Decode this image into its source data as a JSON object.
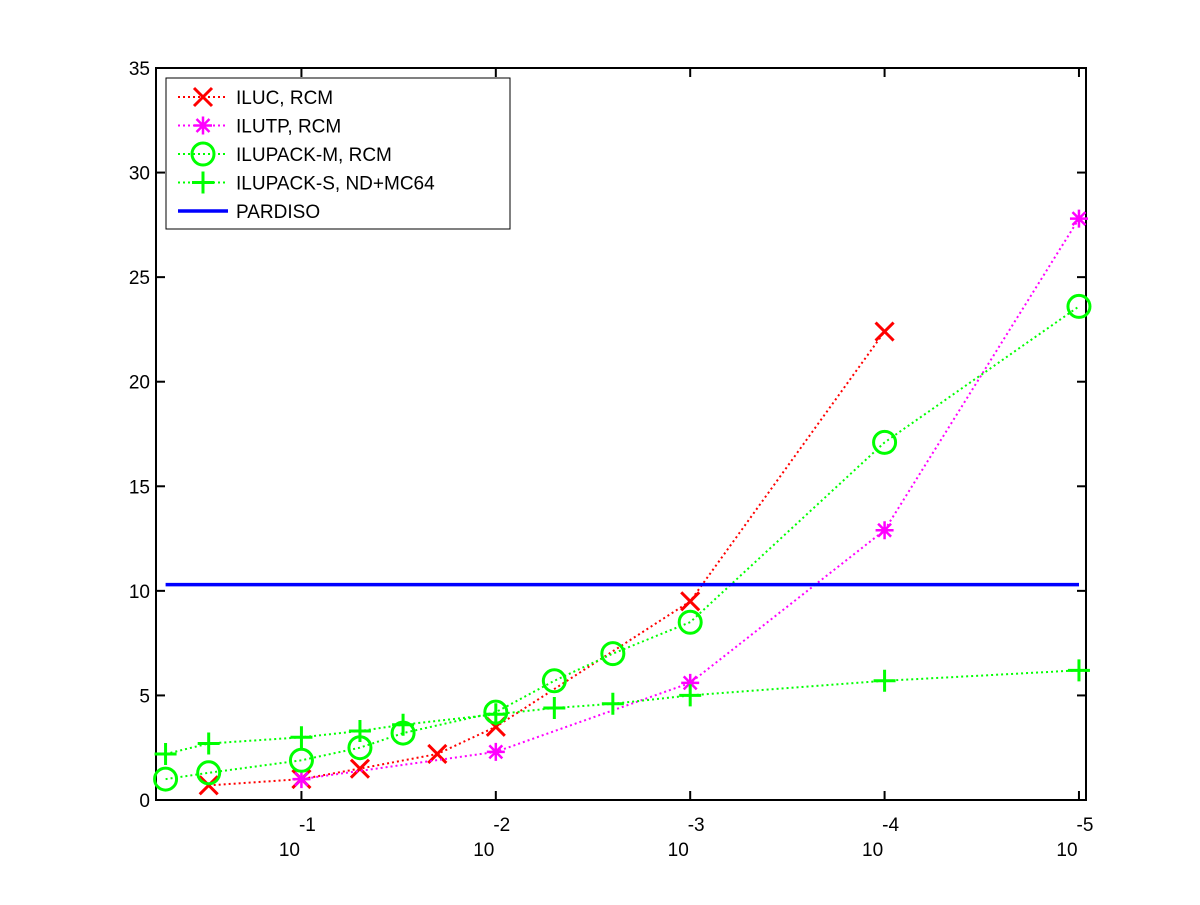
{
  "chart_data": {
    "type": "line",
    "x_scale": "log-reversed",
    "xlim": [
      0.56,
      9.2e-06
    ],
    "ylim": [
      0,
      35
    ],
    "x_ticks": [
      {
        "value": 0.1,
        "base": "10",
        "exp": "-1"
      },
      {
        "value": 0.01,
        "base": "10",
        "exp": "-2"
      },
      {
        "value": 0.001,
        "base": "10",
        "exp": "-3"
      },
      {
        "value": 0.0001,
        "base": "10",
        "exp": "-4"
      },
      {
        "value": 1e-05,
        "base": "10",
        "exp": "-5"
      }
    ],
    "y_ticks": [
      0,
      5,
      10,
      15,
      20,
      25,
      30,
      35
    ],
    "grid": false,
    "legend_position": "top-left",
    "series": [
      {
        "name": "ILUC, RCM",
        "color": "#ff0000",
        "line_style": "dotted",
        "marker": "x",
        "x": [
          0.3,
          0.1,
          0.05,
          0.02,
          0.01,
          0.001,
          0.0001
        ],
        "y": [
          0.7,
          1.0,
          1.5,
          2.2,
          3.5,
          9.5,
          22.4
        ]
      },
      {
        "name": "ILUTP, RCM",
        "color": "#ff00ff",
        "line_style": "dotted",
        "marker": "asterisk",
        "x": [
          0.1,
          0.01,
          0.001,
          0.0001,
          1e-05
        ],
        "y": [
          1.0,
          2.3,
          5.6,
          12.9,
          27.8
        ]
      },
      {
        "name": "ILUPACK-M, RCM",
        "color": "#00ff00",
        "line_style": "dotted",
        "marker": "circle",
        "x": [
          0.5,
          0.3,
          0.1,
          0.05,
          0.03,
          0.01,
          0.005,
          0.0025,
          0.001,
          0.0001,
          1e-05
        ],
        "y": [
          1.0,
          1.3,
          1.9,
          2.5,
          3.2,
          4.2,
          5.7,
          7.0,
          8.5,
          17.1,
          23.6
        ]
      },
      {
        "name": "ILUPACK-S, ND+MC64",
        "color": "#00ff00",
        "line_style": "dotted",
        "marker": "plus",
        "x": [
          0.5,
          0.3,
          0.1,
          0.05,
          0.03,
          0.01,
          0.005,
          0.0025,
          0.001,
          0.0001,
          1e-05
        ],
        "y": [
          2.2,
          2.7,
          3.0,
          3.3,
          3.6,
          4.1,
          4.4,
          4.6,
          5.0,
          5.7,
          6.2
        ]
      },
      {
        "name": "PARDISO",
        "color": "#0000ff",
        "line_style": "solid",
        "marker": "none",
        "x": [
          0.5,
          1e-05
        ],
        "y": [
          10.3,
          10.3
        ]
      }
    ]
  }
}
